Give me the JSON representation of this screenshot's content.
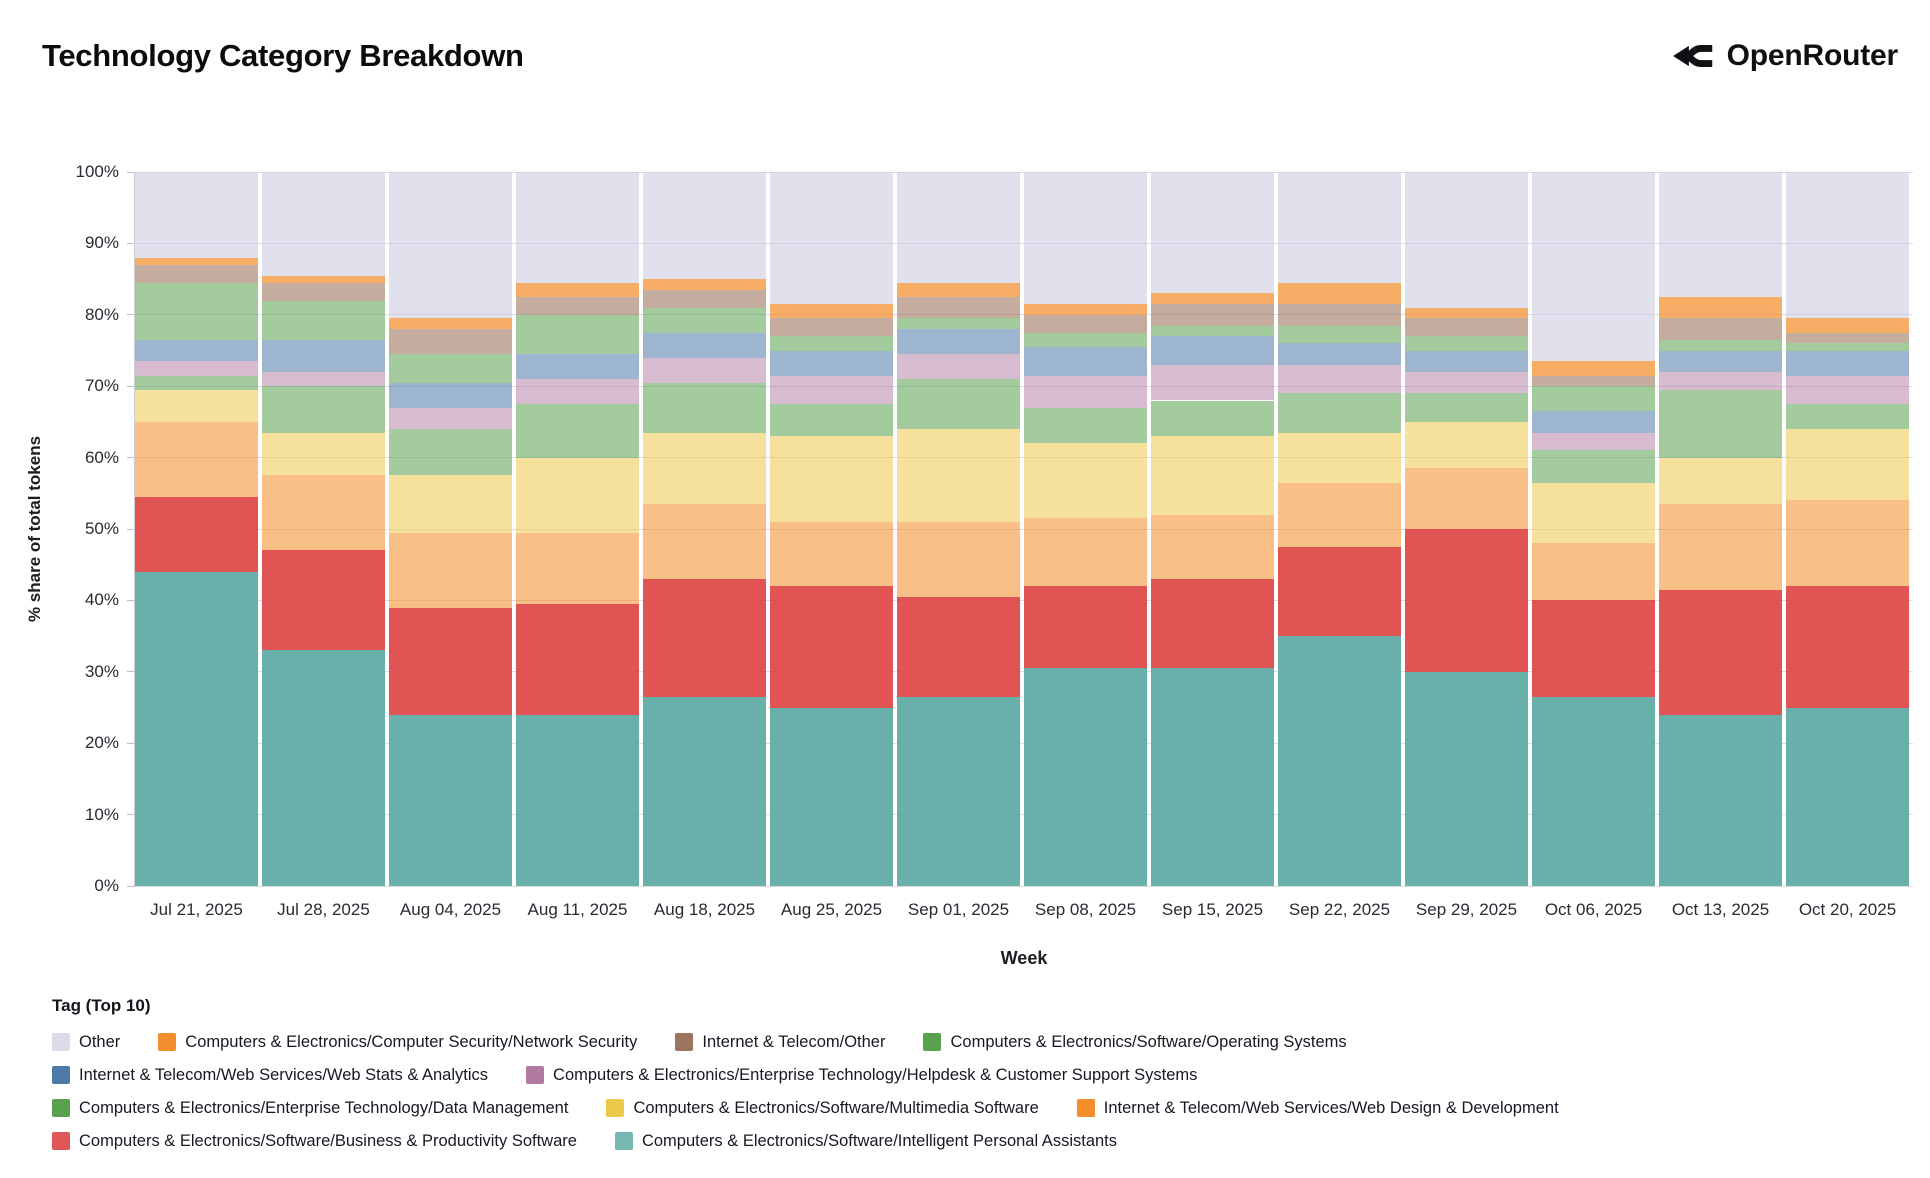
{
  "header": {
    "title": "Technology Category Breakdown",
    "brand": "OpenRouter"
  },
  "chart_data": {
    "type": "bar",
    "subtype": "stacked-100-percent",
    "title": "Technology Category Breakdown",
    "xlabel": "Week",
    "ylabel": "% share of total tokens",
    "ylim": [
      0,
      100
    ],
    "grid": true,
    "yticks": [
      "0%",
      "10%",
      "20%",
      "30%",
      "40%",
      "50%",
      "60%",
      "70%",
      "80%",
      "90%",
      "100%"
    ],
    "categories": [
      "Jul 21, 2025",
      "Jul 28, 2025",
      "Aug 04, 2025",
      "Aug 11, 2025",
      "Aug 18, 2025",
      "Aug 25, 2025",
      "Sep 01, 2025",
      "Sep 08, 2025",
      "Sep 15, 2025",
      "Sep 22, 2025",
      "Sep 29, 2025",
      "Oct 06, 2025",
      "Oct 13, 2025",
      "Oct 20, 2025"
    ],
    "units": "percent of total tokens",
    "stacking_note": "series listed bottom-to-top; values are percent per week",
    "series": [
      {
        "key": "intelligent-personal-assistants",
        "name": "Computers & Electronics/Software/Intelligent Personal Assistants",
        "color": "#76b7b2",
        "fill": "rgba(93,170,162,0.93)",
        "values": [
          44,
          33,
          24,
          24,
          26.5,
          25,
          26.5,
          30.5,
          30.5,
          35,
          30,
          26.5,
          24,
          25
        ]
      },
      {
        "key": "business-productivity-software",
        "name": "Computers & Electronics/Software/Business & Productivity Software",
        "color": "#e15759",
        "fill": "rgba(221,65,65,0.9)",
        "values": [
          10.5,
          14,
          15,
          15.5,
          16.5,
          17,
          14,
          11.5,
          12.5,
          12.5,
          20,
          13.5,
          17.5,
          17
        ]
      },
      {
        "key": "web-design-development",
        "name": "Internet & Telecom/Web Services/Web Design & Development",
        "color": "#f28e2b",
        "fill": "rgba(242,142,43,0.57)",
        "values": [
          10.5,
          10.5,
          10.5,
          10,
          10.5,
          9,
          10.5,
          9.5,
          9,
          9,
          8.5,
          8,
          12,
          12
        ]
      },
      {
        "key": "multimedia-software",
        "name": "Computers & Electronics/Software/Multimedia Software",
        "color": "#edc949",
        "fill": "rgba(237,201,73,0.55)",
        "values": [
          4.5,
          6,
          8,
          10.5,
          10,
          12,
          13,
          10.5,
          11,
          7,
          6.5,
          8.5,
          6.5,
          10
        ]
      },
      {
        "key": "data-management",
        "name": "Computers & Electronics/Enterprise Technology/Data Management",
        "color": "#59a14f",
        "fill": "rgba(89,161,79,0.55)",
        "values": [
          2,
          6.5,
          6.5,
          7.5,
          7,
          4.5,
          7,
          5,
          5,
          5.5,
          4,
          4.5,
          9.5,
          3.5
        ]
      },
      {
        "key": "helpdesk-customer-support",
        "name": "Computers & Electronics/Enterprise Technology/Helpdesk & Customer Support Systems",
        "color": "#b07aa1",
        "fill": "rgba(176,122,161,0.5)",
        "values": [
          2,
          2,
          3,
          3.5,
          3.5,
          4,
          3.5,
          4.5,
          5,
          4,
          3,
          2.5,
          2.5,
          4
        ]
      },
      {
        "key": "web-stats-analytics",
        "name": "Internet & Telecom/Web Services/Web Stats & Analytics",
        "color": "#4e79a7",
        "fill": "rgba(78,121,167,0.55)",
        "values": [
          3,
          4.5,
          3.5,
          3.5,
          3.5,
          3.5,
          3.5,
          4,
          4,
          3,
          3,
          3,
          3,
          3.5
        ]
      },
      {
        "key": "operating-systems",
        "name": "Computers & Electronics/Software/Operating Systems",
        "color": "#59a14f",
        "fill": "rgba(89,161,79,0.55)",
        "values": [
          8,
          5.5,
          4,
          5.5,
          3.5,
          2,
          1.5,
          2,
          1.5,
          2.5,
          2,
          3.5,
          1.5,
          1
        ]
      },
      {
        "key": "internet-telecom-other",
        "name": "Internet & Telecom/Other",
        "color": "#9c755f",
        "fill": "rgba(156,117,95,0.6)",
        "values": [
          2.5,
          2.5,
          3.5,
          2.5,
          2.5,
          2.5,
          3,
          2.5,
          3,
          3,
          2.5,
          1.5,
          3,
          1.5
        ]
      },
      {
        "key": "network-security",
        "name": "Computers & Electronics/Computer Security/Network Security",
        "color": "#f28e2b",
        "fill": "rgba(242,142,43,0.72)",
        "values": [
          1,
          1,
          1.5,
          2,
          1.5,
          2,
          2,
          1.5,
          1.5,
          3,
          1.5,
          2,
          3,
          2
        ]
      },
      {
        "key": "other",
        "name": "Other",
        "color": "#dcdce8",
        "fill": "rgba(200,200,223,0.55)",
        "values": [
          12,
          14.5,
          20.5,
          15.5,
          15,
          18.5,
          15.5,
          18.5,
          17,
          15.5,
          19,
          26.5,
          17.5,
          20.5
        ]
      }
    ],
    "legend": {
      "title": "Tag (Top 10)",
      "position": "bottom",
      "items": [
        {
          "label": "Other",
          "color": "#dcdce8"
        },
        {
          "label": "Computers & Electronics/Computer Security/Network Security",
          "color": "#f28e2b"
        },
        {
          "label": "Internet & Telecom/Other",
          "color": "#9c755f"
        },
        {
          "label": "Computers & Electronics/Software/Operating Systems",
          "color": "#59a14f"
        },
        {
          "label": "Internet & Telecom/Web Services/Web Stats & Analytics",
          "color": "#4e79a7"
        },
        {
          "label": "Computers & Electronics/Enterprise Technology/Helpdesk & Customer Support Systems",
          "color": "#b07aa1"
        },
        {
          "label": "Computers & Electronics/Enterprise Technology/Data Management",
          "color": "#59a14f"
        },
        {
          "label": "Computers & Electronics/Software/Multimedia Software",
          "color": "#edc949"
        },
        {
          "label": "Internet & Telecom/Web Services/Web Design & Development",
          "color": "#f28e2b"
        },
        {
          "label": "Computers & Electronics/Software/Business & Productivity Software",
          "color": "#e15759"
        },
        {
          "label": "Computers & Electronics/Software/Intelligent Personal Assistants",
          "color": "#76b7b2"
        }
      ]
    }
  }
}
